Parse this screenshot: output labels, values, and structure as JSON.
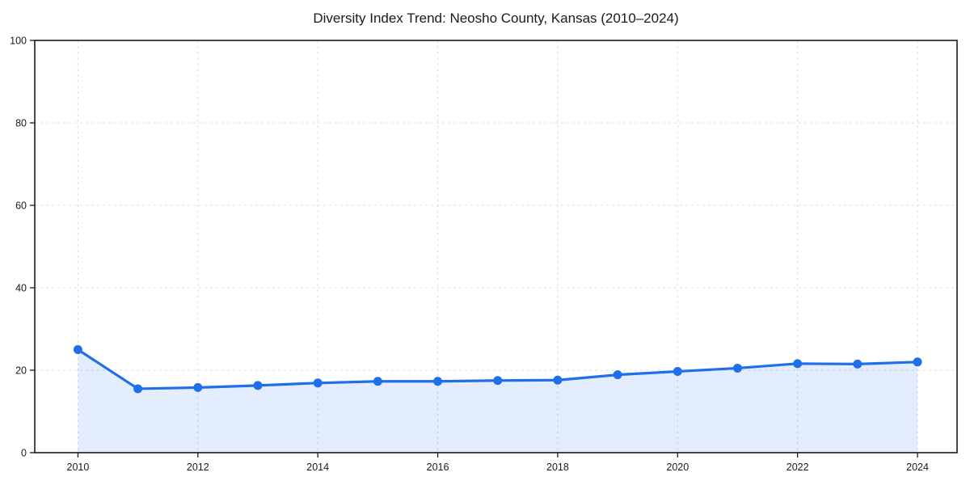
{
  "chart_data": {
    "type": "line",
    "title": "Diversity Index Trend: Neosho County, Kansas (2010–2024)",
    "x": [
      2010,
      2011,
      2012,
      2013,
      2014,
      2015,
      2016,
      2017,
      2018,
      2019,
      2020,
      2021,
      2022,
      2023,
      2024
    ],
    "values": [
      25.0,
      15.5,
      15.8,
      16.3,
      16.9,
      17.3,
      17.3,
      17.5,
      17.6,
      18.9,
      19.7,
      20.5,
      21.6,
      21.5,
      22.0
    ],
    "xlabel": "",
    "ylabel": "",
    "xlim": [
      2009.28,
      2024.66
    ],
    "ylim": [
      0,
      100
    ],
    "xticks": [
      2010,
      2012,
      2014,
      2016,
      2018,
      2020,
      2022,
      2024
    ],
    "yticks": [
      0,
      20,
      40,
      60,
      80,
      100
    ],
    "grid": true,
    "legend": false,
    "marker": "circle",
    "area_fill": true,
    "line_color": "#1f6feb",
    "fill_opacity": 0.12,
    "grid_color": "#dcdcdc",
    "spine_color": "#1a1a1a",
    "tick_label_color": "#1a1a1a"
  }
}
